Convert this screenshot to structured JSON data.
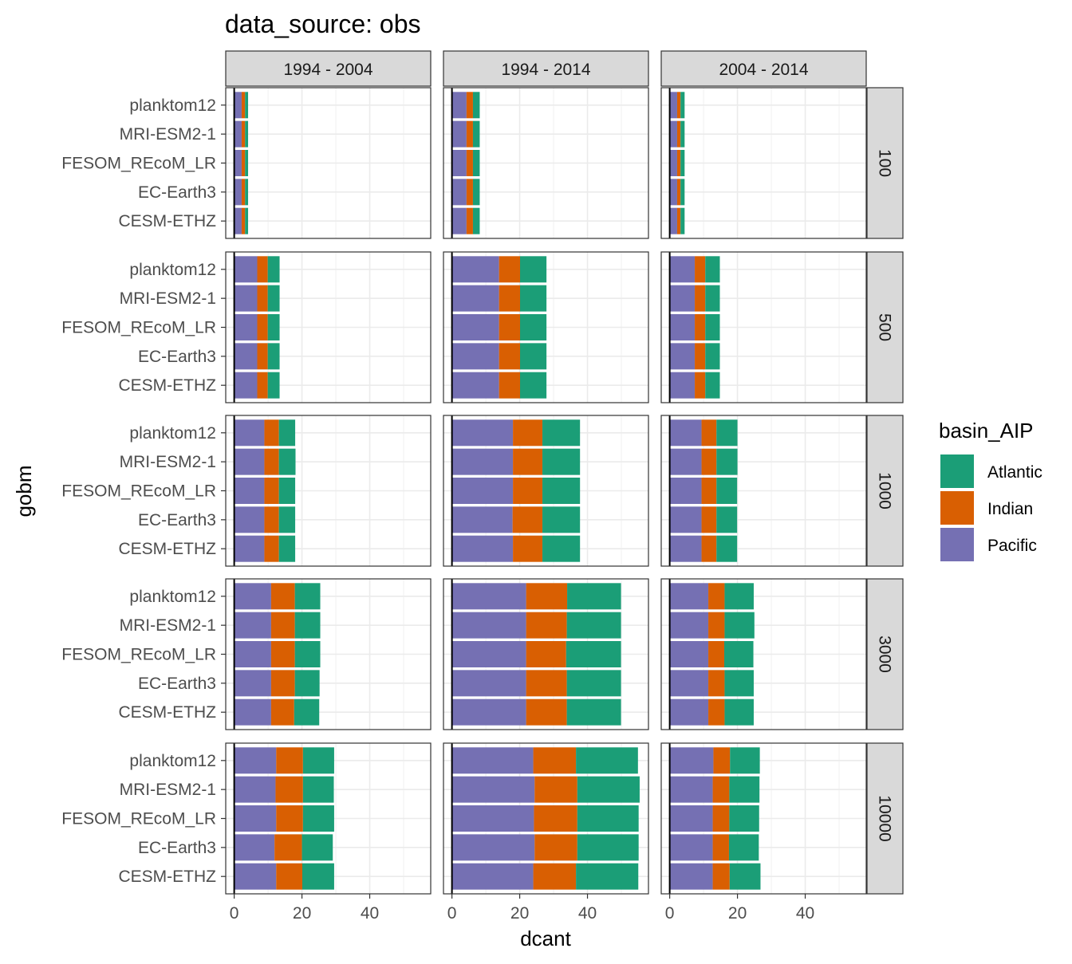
{
  "chart_data": {
    "type": "bar",
    "orientation": "horizontal",
    "stacked": true,
    "title": "data_source: obs",
    "xlabel": "dcant",
    "ylabel": "gobm",
    "xlim": [
      -2.5,
      58
    ],
    "x_ticks": [
      0,
      20,
      40
    ],
    "grid": true,
    "legend_position": "right",
    "legend": {
      "title": "basin_AIP",
      "entries": [
        {
          "name": "Atlantic",
          "color": "#1b9e77"
        },
        {
          "name": "Indian",
          "color": "#d95f02"
        },
        {
          "name": "Pacific",
          "color": "#7570b3"
        }
      ]
    },
    "stack_order": [
      "Pacific",
      "Indian",
      "Atlantic"
    ],
    "categories": [
      "planktom12",
      "MRI-ESM2-1",
      "FESOM_REcoM_LR",
      "EC-Earth3",
      "CESM-ETHZ"
    ],
    "column_facets": [
      "1994 - 2004",
      "1994 - 2014",
      "2004 - 2014"
    ],
    "row_facets": [
      "100",
      "500",
      "1000",
      "3000",
      "10000"
    ],
    "panels": {
      "100": {
        "1994 - 2004": {
          "Pacific": [
            2.2,
            2.2,
            2.2,
            2.2,
            2.2
          ],
          "Indian": [
            1.0,
            1.0,
            1.0,
            1.0,
            1.0
          ],
          "Atlantic": [
            0.9,
            0.9,
            0.9,
            0.9,
            0.9
          ]
        },
        "1994 - 2014": {
          "Pacific": [
            4.3,
            4.3,
            4.3,
            4.3,
            4.3
          ],
          "Indian": [
            1.9,
            1.9,
            1.9,
            1.9,
            1.9
          ],
          "Atlantic": [
            2.0,
            2.0,
            2.0,
            2.0,
            2.0
          ]
        },
        "2004 - 2014": {
          "Pacific": [
            2.2,
            2.2,
            2.2,
            2.2,
            2.2
          ],
          "Indian": [
            1.0,
            1.0,
            1.0,
            1.0,
            1.0
          ],
          "Atlantic": [
            1.2,
            1.2,
            1.2,
            1.2,
            1.2
          ]
        }
      },
      "500": {
        "1994 - 2004": {
          "Pacific": [
            6.8,
            6.8,
            6.8,
            6.8,
            6.8
          ],
          "Indian": [
            3.1,
            3.1,
            3.1,
            3.1,
            3.1
          ],
          "Atlantic": [
            3.5,
            3.5,
            3.5,
            3.5,
            3.5
          ]
        },
        "1994 - 2014": {
          "Pacific": [
            13.9,
            13.9,
            13.9,
            13.9,
            13.9
          ],
          "Indian": [
            6.2,
            6.2,
            6.2,
            6.2,
            6.2
          ],
          "Atlantic": [
            7.8,
            7.8,
            7.8,
            7.8,
            7.8
          ]
        },
        "2004 - 2014": {
          "Pacific": [
            7.4,
            7.4,
            7.4,
            7.4,
            7.4
          ],
          "Indian": [
            3.1,
            3.1,
            3.1,
            3.1,
            3.1
          ],
          "Atlantic": [
            4.3,
            4.3,
            4.3,
            4.3,
            4.3
          ]
        }
      },
      "1000": {
        "1994 - 2004": {
          "Pacific": [
            8.9,
            8.9,
            8.9,
            8.9,
            8.9
          ],
          "Indian": [
            4.3,
            4.3,
            4.3,
            4.3,
            4.3
          ],
          "Atlantic": [
            4.8,
            4.9,
            4.8,
            4.8,
            4.8
          ]
        },
        "1994 - 2014": {
          "Pacific": [
            18.0,
            18.0,
            18.0,
            17.9,
            18.0
          ],
          "Indian": [
            8.7,
            8.7,
            8.7,
            8.8,
            8.7
          ],
          "Atlantic": [
            11.1,
            11.1,
            11.1,
            11.1,
            11.1
          ]
        },
        "2004 - 2014": {
          "Pacific": [
            9.4,
            9.4,
            9.4,
            9.4,
            9.4
          ],
          "Indian": [
            4.4,
            4.4,
            4.4,
            4.4,
            4.4
          ],
          "Atlantic": [
            6.2,
            6.2,
            6.1,
            6.1,
            6.1
          ]
        }
      },
      "3000": {
        "1994 - 2004": {
          "Pacific": [
            10.9,
            10.9,
            10.9,
            10.9,
            10.9
          ],
          "Indian": [
            7.0,
            7.0,
            7.0,
            7.0,
            6.8
          ],
          "Atlantic": [
            7.5,
            7.5,
            7.5,
            7.3,
            7.4
          ]
        },
        "1994 - 2014": {
          "Pacific": [
            21.9,
            21.9,
            21.9,
            21.9,
            21.9
          ],
          "Indian": [
            12.1,
            12.0,
            11.8,
            12.0,
            12.0
          ],
          "Atlantic": [
            15.9,
            16.0,
            16.2,
            16.0,
            16.0
          ]
        },
        "2004 - 2014": {
          "Pacific": [
            11.4,
            11.4,
            11.4,
            11.4,
            11.4
          ],
          "Indian": [
            4.8,
            4.8,
            4.7,
            4.8,
            4.8
          ],
          "Atlantic": [
            8.6,
            8.8,
            8.6,
            8.6,
            8.6
          ]
        }
      },
      "10000": {
        "1994 - 2004": {
          "Pacific": [
            12.4,
            12.2,
            12.4,
            11.9,
            12.4
          ],
          "Indian": [
            7.9,
            8.1,
            7.9,
            8.1,
            7.7
          ],
          "Atlantic": [
            9.2,
            9.1,
            9.2,
            9.1,
            9.4
          ]
        },
        "1994 - 2014": {
          "Pacific": [
            24.0,
            24.4,
            24.2,
            24.4,
            24.0
          ],
          "Indian": [
            12.6,
            12.6,
            12.8,
            12.6,
            12.6
          ],
          "Atlantic": [
            18.3,
            18.4,
            18.1,
            18.1,
            18.4
          ]
        },
        "2004 - 2014": {
          "Pacific": [
            12.9,
            12.7,
            12.7,
            12.7,
            12.7
          ],
          "Indian": [
            4.9,
            4.9,
            4.9,
            4.8,
            5.0
          ],
          "Atlantic": [
            8.8,
            8.9,
            8.8,
            8.8,
            9.1
          ]
        }
      }
    }
  }
}
